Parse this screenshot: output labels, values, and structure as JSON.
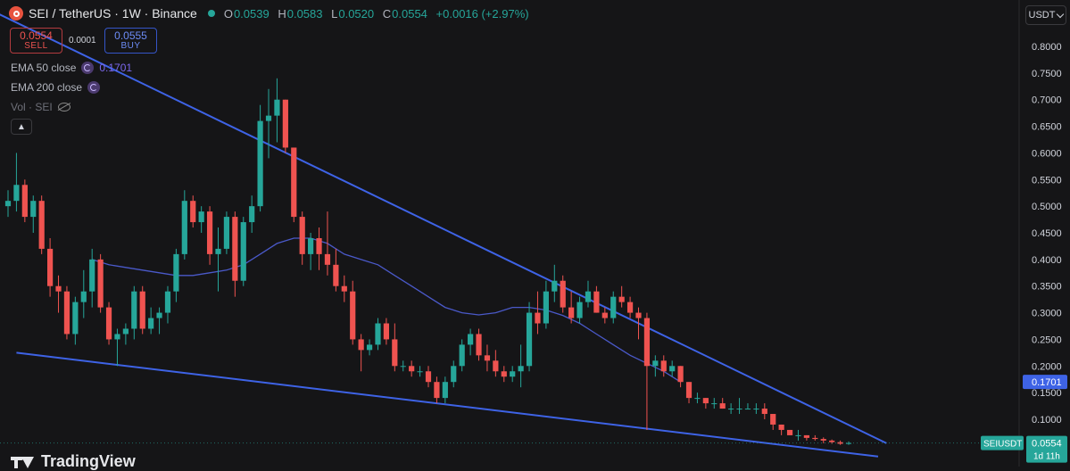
{
  "header": {
    "symbol_title": "SEI / TetherUS · 1W · Binance",
    "ohlc": [
      {
        "k": "O",
        "v": "0.0539"
      },
      {
        "k": "H",
        "v": "0.0583"
      },
      {
        "k": "L",
        "v": "0.0520"
      },
      {
        "k": "C",
        "v": "0.0554"
      },
      {
        "k": "",
        "v": "+0.0016 (+2.97%)"
      }
    ]
  },
  "trade": {
    "sell_price": "0.0554",
    "sell_label": "SELL",
    "spread": "0.0001",
    "buy_price": "0.0555",
    "buy_label": "BUY"
  },
  "indicators": {
    "ema50_label": "EMA 50 close",
    "ema50_value": "0.1701",
    "ema200_label": "EMA 200 close",
    "vol_label": "Vol · SEI"
  },
  "currency_selector": "USDT",
  "brand": "TradingView",
  "colors": {
    "up": "#26a69a",
    "down": "#ef5350",
    "trendline": "#3e63e6",
    "ema50": "#4a59c9",
    "ema_badge": "#3e63e6",
    "background": "#151517"
  },
  "chart_data": {
    "type": "candlestick",
    "title": "SEI / TetherUS · 1W · Binance",
    "y_axis": {
      "ticks": [
        "0.8000",
        "0.7500",
        "0.7000",
        "0.6500",
        "0.6000",
        "0.5500",
        "0.5000",
        "0.4500",
        "0.4000",
        "0.3500",
        "0.3000",
        "0.2500",
        "0.2000",
        "0.1500",
        "0.1000"
      ],
      "ylim": [
        0.04,
        0.84
      ]
    },
    "candles": [
      [
        0.5,
        0.53,
        0.48,
        0.51
      ],
      [
        0.51,
        0.6,
        0.49,
        0.54
      ],
      [
        0.54,
        0.55,
        0.47,
        0.48
      ],
      [
        0.48,
        0.52,
        0.45,
        0.51
      ],
      [
        0.51,
        0.52,
        0.41,
        0.42
      ],
      [
        0.42,
        0.44,
        0.33,
        0.35
      ],
      [
        0.35,
        0.37,
        0.3,
        0.34
      ],
      [
        0.34,
        0.35,
        0.25,
        0.26
      ],
      [
        0.26,
        0.33,
        0.24,
        0.32
      ],
      [
        0.32,
        0.38,
        0.29,
        0.34
      ],
      [
        0.34,
        0.42,
        0.31,
        0.4
      ],
      [
        0.4,
        0.41,
        0.3,
        0.31
      ],
      [
        0.31,
        0.32,
        0.24,
        0.25
      ],
      [
        0.25,
        0.27,
        0.2,
        0.26
      ],
      [
        0.26,
        0.28,
        0.24,
        0.27
      ],
      [
        0.27,
        0.35,
        0.25,
        0.34
      ],
      [
        0.34,
        0.35,
        0.26,
        0.27
      ],
      [
        0.27,
        0.31,
        0.26,
        0.29
      ],
      [
        0.29,
        0.31,
        0.26,
        0.3
      ],
      [
        0.3,
        0.35,
        0.28,
        0.34
      ],
      [
        0.34,
        0.42,
        0.32,
        0.41
      ],
      [
        0.41,
        0.53,
        0.4,
        0.51
      ],
      [
        0.51,
        0.52,
        0.46,
        0.47
      ],
      [
        0.47,
        0.5,
        0.45,
        0.49
      ],
      [
        0.49,
        0.5,
        0.39,
        0.41
      ],
      [
        0.41,
        0.46,
        0.34,
        0.42
      ],
      [
        0.42,
        0.49,
        0.41,
        0.48
      ],
      [
        0.48,
        0.49,
        0.33,
        0.36
      ],
      [
        0.36,
        0.48,
        0.35,
        0.47
      ],
      [
        0.47,
        0.52,
        0.45,
        0.5
      ],
      [
        0.5,
        0.69,
        0.49,
        0.66
      ],
      [
        0.66,
        0.72,
        0.59,
        0.67
      ],
      [
        0.67,
        0.74,
        0.62,
        0.7
      ],
      [
        0.7,
        0.7,
        0.6,
        0.61
      ],
      [
        0.61,
        0.61,
        0.47,
        0.48
      ],
      [
        0.48,
        0.49,
        0.39,
        0.41
      ],
      [
        0.41,
        0.45,
        0.38,
        0.44
      ],
      [
        0.44,
        0.46,
        0.38,
        0.41
      ],
      [
        0.41,
        0.49,
        0.37,
        0.39
      ],
      [
        0.39,
        0.42,
        0.34,
        0.35
      ],
      [
        0.35,
        0.37,
        0.32,
        0.34
      ],
      [
        0.34,
        0.36,
        0.24,
        0.25
      ],
      [
        0.25,
        0.26,
        0.19,
        0.23
      ],
      [
        0.23,
        0.25,
        0.22,
        0.24
      ],
      [
        0.24,
        0.29,
        0.23,
        0.28
      ],
      [
        0.28,
        0.29,
        0.24,
        0.25
      ],
      [
        0.25,
        0.28,
        0.19,
        0.2
      ],
      [
        0.2,
        0.21,
        0.19,
        0.2
      ],
      [
        0.2,
        0.21,
        0.18,
        0.19
      ],
      [
        0.19,
        0.2,
        0.18,
        0.19
      ],
      [
        0.19,
        0.2,
        0.16,
        0.17
      ],
      [
        0.17,
        0.18,
        0.13,
        0.14
      ],
      [
        0.14,
        0.18,
        0.13,
        0.17
      ],
      [
        0.17,
        0.21,
        0.16,
        0.2
      ],
      [
        0.2,
        0.25,
        0.19,
        0.24
      ],
      [
        0.24,
        0.27,
        0.22,
        0.26
      ],
      [
        0.26,
        0.27,
        0.21,
        0.22
      ],
      [
        0.22,
        0.24,
        0.19,
        0.21
      ],
      [
        0.21,
        0.23,
        0.18,
        0.19
      ],
      [
        0.19,
        0.2,
        0.17,
        0.18
      ],
      [
        0.18,
        0.2,
        0.17,
        0.19
      ],
      [
        0.19,
        0.24,
        0.16,
        0.2
      ],
      [
        0.2,
        0.32,
        0.19,
        0.3
      ],
      [
        0.3,
        0.34,
        0.26,
        0.28
      ],
      [
        0.28,
        0.36,
        0.27,
        0.34
      ],
      [
        0.34,
        0.39,
        0.32,
        0.36
      ],
      [
        0.36,
        0.37,
        0.3,
        0.31
      ],
      [
        0.31,
        0.34,
        0.28,
        0.29
      ],
      [
        0.29,
        0.33,
        0.28,
        0.32
      ],
      [
        0.32,
        0.36,
        0.31,
        0.34
      ],
      [
        0.34,
        0.35,
        0.3,
        0.3
      ],
      [
        0.3,
        0.31,
        0.28,
        0.29
      ],
      [
        0.29,
        0.34,
        0.28,
        0.33
      ],
      [
        0.33,
        0.35,
        0.31,
        0.32
      ],
      [
        0.32,
        0.33,
        0.29,
        0.3
      ],
      [
        0.3,
        0.31,
        0.25,
        0.29
      ],
      [
        0.29,
        0.3,
        0.08,
        0.2
      ],
      [
        0.2,
        0.22,
        0.18,
        0.21
      ],
      [
        0.21,
        0.22,
        0.18,
        0.19
      ],
      [
        0.19,
        0.21,
        0.18,
        0.2
      ],
      [
        0.2,
        0.2,
        0.16,
        0.17
      ],
      [
        0.17,
        0.17,
        0.13,
        0.14
      ],
      [
        0.14,
        0.15,
        0.13,
        0.14
      ],
      [
        0.14,
        0.14,
        0.12,
        0.13
      ],
      [
        0.13,
        0.14,
        0.12,
        0.13
      ],
      [
        0.13,
        0.14,
        0.12,
        0.12
      ],
      [
        0.12,
        0.13,
        0.11,
        0.12
      ],
      [
        0.12,
        0.14,
        0.11,
        0.12
      ],
      [
        0.12,
        0.13,
        0.12,
        0.12
      ],
      [
        0.12,
        0.13,
        0.11,
        0.12
      ],
      [
        0.12,
        0.13,
        0.1,
        0.11
      ],
      [
        0.11,
        0.11,
        0.08,
        0.09
      ],
      [
        0.09,
        0.09,
        0.07,
        0.08
      ],
      [
        0.08,
        0.08,
        0.07,
        0.07
      ],
      [
        0.07,
        0.08,
        0.06,
        0.07
      ],
      [
        0.07,
        0.07,
        0.06,
        0.065
      ],
      [
        0.065,
        0.07,
        0.06,
        0.063
      ],
      [
        0.063,
        0.066,
        0.055,
        0.06
      ],
      [
        0.06,
        0.062,
        0.054,
        0.057
      ],
      [
        0.057,
        0.06,
        0.052,
        0.054
      ],
      [
        0.0539,
        0.0583,
        0.052,
        0.0554
      ]
    ],
    "ema50": [
      0.4,
      0.39,
      0.385,
      0.38,
      0.375,
      0.37,
      0.37,
      0.375,
      0.38,
      0.39,
      0.41,
      0.43,
      0.44,
      0.44,
      0.43,
      0.41,
      0.4,
      0.39,
      0.37,
      0.35,
      0.33,
      0.31,
      0.3,
      0.296,
      0.3,
      0.31,
      0.31,
      0.305,
      0.295,
      0.28,
      0.26,
      0.24,
      0.22,
      0.205,
      0.19,
      0.17
    ],
    "trendlines": [
      {
        "from": [
          -1,
          0.86
        ],
        "to": [
          104.5,
          0.055
        ]
      },
      {
        "from": [
          1,
          0.225
        ],
        "to": [
          103.5,
          0.03
        ]
      }
    ],
    "price_labels": [
      {
        "label": "",
        "value": "0.1701",
        "y": 0.1701
      },
      {
        "label": "SEIUSDT",
        "value": "0.0554",
        "sub": "1d 11h",
        "y": 0.0554
      }
    ],
    "grid": false
  }
}
